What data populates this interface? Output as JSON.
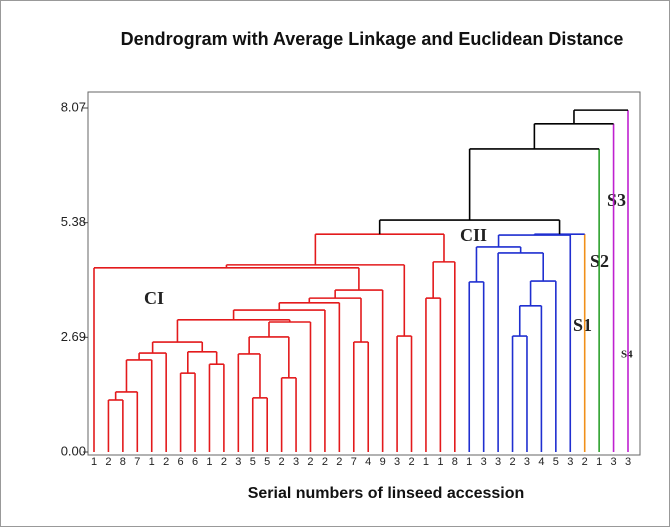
{
  "chart_data": {
    "type": "dendrogram",
    "title": "Dendrogram with Average Linkage and Euclidean Distance",
    "x_label": "Serial numbers of linseed accession",
    "ylim": [
      0,
      8.07
    ],
    "yticks": [
      {
        "value": 0,
        "label": "0.00"
      },
      2.69,
      5.38,
      8.07
    ],
    "leaves": [
      {
        "label": "1",
        "color": "#e31a1c"
      },
      {
        "label": "2",
        "color": "#e31a1c"
      },
      {
        "label": "8",
        "color": "#e31a1c"
      },
      {
        "label": "7",
        "color": "#e31a1c"
      },
      {
        "label": "1",
        "color": "#e31a1c"
      },
      {
        "label": "2",
        "color": "#e31a1c"
      },
      {
        "label": "6",
        "color": "#e31a1c"
      },
      {
        "label": "6",
        "color": "#e31a1c"
      },
      {
        "label": "1",
        "color": "#e31a1c"
      },
      {
        "label": "2",
        "color": "#e31a1c"
      },
      {
        "label": "3",
        "color": "#e31a1c"
      },
      {
        "label": "5",
        "color": "#e31a1c"
      },
      {
        "label": "5",
        "color": "#e31a1c"
      },
      {
        "label": "2",
        "color": "#e31a1c"
      },
      {
        "label": "3",
        "color": "#e31a1c"
      },
      {
        "label": "2",
        "color": "#e31a1c"
      },
      {
        "label": "2",
        "color": "#e31a1c"
      },
      {
        "label": "2",
        "color": "#e31a1c"
      },
      {
        "label": "7",
        "color": "#e31a1c"
      },
      {
        "label": "4",
        "color": "#e31a1c"
      },
      {
        "label": "9",
        "color": "#e31a1c"
      },
      {
        "label": "3",
        "color": "#e31a1c"
      },
      {
        "label": "2",
        "color": "#e31a1c"
      },
      {
        "label": "1",
        "color": "#e31a1c"
      },
      {
        "label": "1",
        "color": "#e31a1c"
      },
      {
        "label": "8",
        "color": "#e31a1c"
      },
      {
        "label": "1",
        "color": "#1f2fd0"
      },
      {
        "label": "3",
        "color": "#1f2fd0"
      },
      {
        "label": "3",
        "color": "#1f2fd0"
      },
      {
        "label": "2",
        "color": "#1f2fd0"
      },
      {
        "label": "3",
        "color": "#1f2fd0"
      },
      {
        "label": "4",
        "color": "#1f2fd0"
      },
      {
        "label": "5",
        "color": "#1f2fd0"
      },
      {
        "label": "3",
        "color": "#1f2fd0"
      },
      {
        "label": "2",
        "color": "#f0901a"
      },
      {
        "label": "1",
        "color": "#2ca02c"
      },
      {
        "label": "3",
        "color": "#c020d0"
      },
      {
        "label": "3",
        "color": "#c020d0"
      }
    ],
    "merges": [
      {
        "children": [
          1,
          2
        ],
        "height": 1.22,
        "color": "#e31a1c"
      },
      {
        "children": [
          38,
          3
        ],
        "height": 1.41,
        "color": "#e31a1c"
      },
      {
        "children": [
          39,
          4
        ],
        "height": 2.16,
        "color": "#e31a1c"
      },
      {
        "children": [
          6,
          7
        ],
        "height": 1.85,
        "color": "#e31a1c"
      },
      {
        "children": [
          8,
          9
        ],
        "height": 2.06,
        "color": "#e31a1c"
      },
      {
        "children": [
          41,
          42
        ],
        "height": 2.35,
        "color": "#e31a1c"
      },
      {
        "children": [
          5,
          40
        ],
        "height": 2.32,
        "color": "#e31a1c"
      },
      {
        "children": [
          44,
          43
        ],
        "height": 2.58,
        "color": "#e31a1c"
      },
      {
        "children": [
          11,
          12
        ],
        "height": 1.27,
        "color": "#e31a1c"
      },
      {
        "children": [
          13,
          14
        ],
        "height": 1.74,
        "color": "#e31a1c"
      },
      {
        "children": [
          10,
          46
        ],
        "height": 2.3,
        "color": "#e31a1c"
      },
      {
        "children": [
          48,
          47
        ],
        "height": 2.7,
        "color": "#e31a1c"
      },
      {
        "children": [
          49,
          15
        ],
        "height": 3.05,
        "color": "#e31a1c"
      },
      {
        "children": [
          45,
          50
        ],
        "height": 3.1,
        "color": "#e31a1c"
      },
      {
        "children": [
          51,
          16
        ],
        "height": 3.33,
        "color": "#e31a1c"
      },
      {
        "children": [
          52,
          17
        ],
        "height": 3.5,
        "color": "#e31a1c"
      },
      {
        "children": [
          18,
          19
        ],
        "height": 2.58,
        "color": "#e31a1c"
      },
      {
        "children": [
          53,
          54
        ],
        "height": 3.61,
        "color": "#e31a1c"
      },
      {
        "children": [
          55,
          20
        ],
        "height": 3.8,
        "color": "#e31a1c"
      },
      {
        "children": [
          0,
          56
        ],
        "height": 4.32,
        "color": "#e31a1c"
      },
      {
        "children": [
          21,
          22
        ],
        "height": 2.72,
        "color": "#e31a1c"
      },
      {
        "children": [
          57,
          58
        ],
        "height": 4.39,
        "color": "#e31a1c"
      },
      {
        "children": [
          23,
          24
        ],
        "height": 3.61,
        "color": "#e31a1c"
      },
      {
        "children": [
          60,
          25
        ],
        "height": 4.46,
        "color": "#e31a1c"
      },
      {
        "children": [
          59,
          61
        ],
        "height": 5.11,
        "color": "#e31a1c"
      },
      {
        "children": [
          26,
          27
        ],
        "height": 3.99,
        "color": "#1f2fd0"
      },
      {
        "children": [
          29,
          30
        ],
        "height": 2.72,
        "color": "#1f2fd0"
      },
      {
        "children": [
          64,
          31
        ],
        "height": 3.43,
        "color": "#1f2fd0"
      },
      {
        "children": [
          65,
          32
        ],
        "height": 4.01,
        "color": "#1f2fd0"
      },
      {
        "children": [
          28,
          66
        ],
        "height": 4.67,
        "color": "#1f2fd0"
      },
      {
        "children": [
          63,
          67
        ],
        "height": 4.81,
        "color": "#1f2fd0"
      },
      {
        "children": [
          68,
          33
        ],
        "height": 5.09,
        "color": "#1f2fd0"
      },
      {
        "children": [
          69,
          34
        ],
        "height": 5.11,
        "color": "#1f2fd0"
      },
      {
        "children": [
          62,
          70
        ],
        "height": 5.44,
        "color": "#000000"
      },
      {
        "children": [
          71,
          35
        ],
        "height": 7.11,
        "color": "#000000"
      },
      {
        "children": [
          72,
          36
        ],
        "height": 7.7,
        "color": "#000000"
      },
      {
        "children": [
          73,
          37
        ],
        "height": 8.02,
        "color": "#000000"
      }
    ],
    "annotations": [
      "CI",
      "CII",
      "S1",
      "S2",
      "S3",
      "S4"
    ]
  }
}
